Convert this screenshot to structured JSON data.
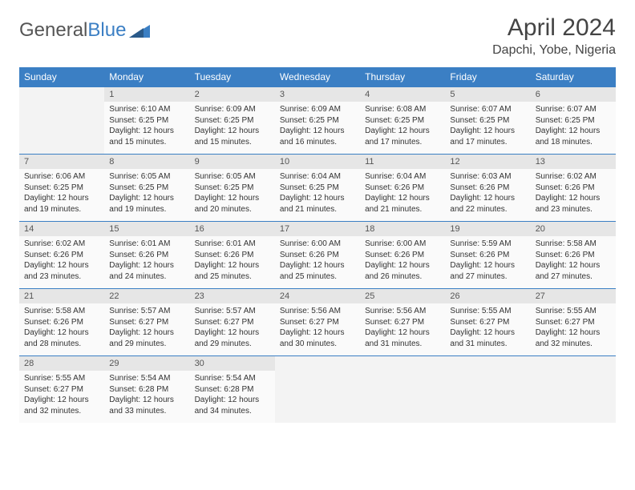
{
  "brand": {
    "part1": "General",
    "part2": "Blue"
  },
  "title": "April 2024",
  "location": "Dapchi, Yobe, Nigeria",
  "colors": {
    "header_bg": "#3b7fc4",
    "header_text": "#ffffff",
    "daynum_bg": "#e6e6e6",
    "info_bg": "#fafafa",
    "empty_bg": "#f3f3f3",
    "page_bg": "#ffffff",
    "title_color": "#444444",
    "text_color": "#333333",
    "row_divider": "#3b7fc4"
  },
  "typography": {
    "title_fontsize": 30,
    "location_fontsize": 16,
    "weekday_fontsize": 12,
    "daynum_fontsize": 11,
    "info_fontsize": 10,
    "font_family": "Arial"
  },
  "weekdays": [
    "Sunday",
    "Monday",
    "Tuesday",
    "Wednesday",
    "Thursday",
    "Friday",
    "Saturday"
  ],
  "weeks": [
    [
      null,
      {
        "n": "1",
        "sr": "Sunrise: 6:10 AM",
        "ss": "Sunset: 6:25 PM",
        "dl": "Daylight: 12 hours and 15 minutes."
      },
      {
        "n": "2",
        "sr": "Sunrise: 6:09 AM",
        "ss": "Sunset: 6:25 PM",
        "dl": "Daylight: 12 hours and 15 minutes."
      },
      {
        "n": "3",
        "sr": "Sunrise: 6:09 AM",
        "ss": "Sunset: 6:25 PM",
        "dl": "Daylight: 12 hours and 16 minutes."
      },
      {
        "n": "4",
        "sr": "Sunrise: 6:08 AM",
        "ss": "Sunset: 6:25 PM",
        "dl": "Daylight: 12 hours and 17 minutes."
      },
      {
        "n": "5",
        "sr": "Sunrise: 6:07 AM",
        "ss": "Sunset: 6:25 PM",
        "dl": "Daylight: 12 hours and 17 minutes."
      },
      {
        "n": "6",
        "sr": "Sunrise: 6:07 AM",
        "ss": "Sunset: 6:25 PM",
        "dl": "Daylight: 12 hours and 18 minutes."
      }
    ],
    [
      {
        "n": "7",
        "sr": "Sunrise: 6:06 AM",
        "ss": "Sunset: 6:25 PM",
        "dl": "Daylight: 12 hours and 19 minutes."
      },
      {
        "n": "8",
        "sr": "Sunrise: 6:05 AM",
        "ss": "Sunset: 6:25 PM",
        "dl": "Daylight: 12 hours and 19 minutes."
      },
      {
        "n": "9",
        "sr": "Sunrise: 6:05 AM",
        "ss": "Sunset: 6:25 PM",
        "dl": "Daylight: 12 hours and 20 minutes."
      },
      {
        "n": "10",
        "sr": "Sunrise: 6:04 AM",
        "ss": "Sunset: 6:25 PM",
        "dl": "Daylight: 12 hours and 21 minutes."
      },
      {
        "n": "11",
        "sr": "Sunrise: 6:04 AM",
        "ss": "Sunset: 6:26 PM",
        "dl": "Daylight: 12 hours and 21 minutes."
      },
      {
        "n": "12",
        "sr": "Sunrise: 6:03 AM",
        "ss": "Sunset: 6:26 PM",
        "dl": "Daylight: 12 hours and 22 minutes."
      },
      {
        "n": "13",
        "sr": "Sunrise: 6:02 AM",
        "ss": "Sunset: 6:26 PM",
        "dl": "Daylight: 12 hours and 23 minutes."
      }
    ],
    [
      {
        "n": "14",
        "sr": "Sunrise: 6:02 AM",
        "ss": "Sunset: 6:26 PM",
        "dl": "Daylight: 12 hours and 23 minutes."
      },
      {
        "n": "15",
        "sr": "Sunrise: 6:01 AM",
        "ss": "Sunset: 6:26 PM",
        "dl": "Daylight: 12 hours and 24 minutes."
      },
      {
        "n": "16",
        "sr": "Sunrise: 6:01 AM",
        "ss": "Sunset: 6:26 PM",
        "dl": "Daylight: 12 hours and 25 minutes."
      },
      {
        "n": "17",
        "sr": "Sunrise: 6:00 AM",
        "ss": "Sunset: 6:26 PM",
        "dl": "Daylight: 12 hours and 25 minutes."
      },
      {
        "n": "18",
        "sr": "Sunrise: 6:00 AM",
        "ss": "Sunset: 6:26 PM",
        "dl": "Daylight: 12 hours and 26 minutes."
      },
      {
        "n": "19",
        "sr": "Sunrise: 5:59 AM",
        "ss": "Sunset: 6:26 PM",
        "dl": "Daylight: 12 hours and 27 minutes."
      },
      {
        "n": "20",
        "sr": "Sunrise: 5:58 AM",
        "ss": "Sunset: 6:26 PM",
        "dl": "Daylight: 12 hours and 27 minutes."
      }
    ],
    [
      {
        "n": "21",
        "sr": "Sunrise: 5:58 AM",
        "ss": "Sunset: 6:26 PM",
        "dl": "Daylight: 12 hours and 28 minutes."
      },
      {
        "n": "22",
        "sr": "Sunrise: 5:57 AM",
        "ss": "Sunset: 6:27 PM",
        "dl": "Daylight: 12 hours and 29 minutes."
      },
      {
        "n": "23",
        "sr": "Sunrise: 5:57 AM",
        "ss": "Sunset: 6:27 PM",
        "dl": "Daylight: 12 hours and 29 minutes."
      },
      {
        "n": "24",
        "sr": "Sunrise: 5:56 AM",
        "ss": "Sunset: 6:27 PM",
        "dl": "Daylight: 12 hours and 30 minutes."
      },
      {
        "n": "25",
        "sr": "Sunrise: 5:56 AM",
        "ss": "Sunset: 6:27 PM",
        "dl": "Daylight: 12 hours and 31 minutes."
      },
      {
        "n": "26",
        "sr": "Sunrise: 5:55 AM",
        "ss": "Sunset: 6:27 PM",
        "dl": "Daylight: 12 hours and 31 minutes."
      },
      {
        "n": "27",
        "sr": "Sunrise: 5:55 AM",
        "ss": "Sunset: 6:27 PM",
        "dl": "Daylight: 12 hours and 32 minutes."
      }
    ],
    [
      {
        "n": "28",
        "sr": "Sunrise: 5:55 AM",
        "ss": "Sunset: 6:27 PM",
        "dl": "Daylight: 12 hours and 32 minutes."
      },
      {
        "n": "29",
        "sr": "Sunrise: 5:54 AM",
        "ss": "Sunset: 6:28 PM",
        "dl": "Daylight: 12 hours and 33 minutes."
      },
      {
        "n": "30",
        "sr": "Sunrise: 5:54 AM",
        "ss": "Sunset: 6:28 PM",
        "dl": "Daylight: 12 hours and 34 minutes."
      },
      null,
      null,
      null,
      null
    ]
  ]
}
